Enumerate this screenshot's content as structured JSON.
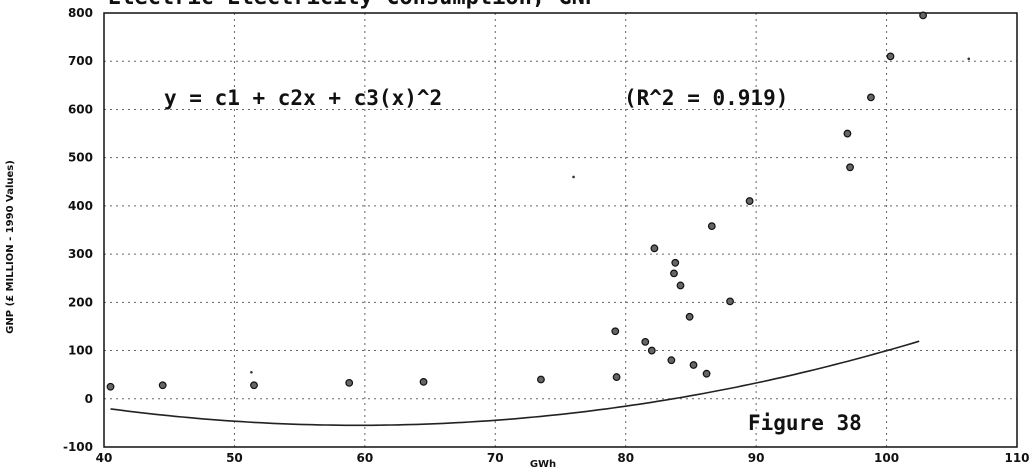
{
  "page_title": "Electric Electricity Consumption, GNP",
  "chart_data": {
    "type": "scatter",
    "title": "",
    "xlabel": "GWh",
    "ylabel": "GNP (£ MILLION - 1990 Values)",
    "xlim": [
      40,
      110
    ],
    "ylim": [
      -100,
      800
    ],
    "xticks": [
      40,
      50,
      60,
      70,
      80,
      90,
      100,
      110
    ],
    "yticks": [
      -100,
      0,
      100,
      200,
      300,
      400,
      500,
      600,
      700,
      800
    ],
    "grid": true,
    "equation": "y = c1 + c2x + c3(x)^2",
    "r_squared": "(R^2 = 0.919)",
    "figure_label": "Figure 38",
    "series": [
      {
        "kind": "points",
        "points": [
          [
            40.5,
            25
          ],
          [
            44.5,
            28
          ],
          [
            51.5,
            28
          ],
          [
            58.8,
            33
          ],
          [
            64.5,
            35
          ],
          [
            73.5,
            40
          ],
          [
            79.2,
            140
          ],
          [
            79.3,
            45
          ],
          [
            81.5,
            118
          ],
          [
            82.0,
            100
          ],
          [
            82.2,
            312
          ],
          [
            83.5,
            80
          ],
          [
            83.7,
            260
          ],
          [
            83.8,
            282
          ],
          [
            84.2,
            235
          ],
          [
            84.9,
            170
          ],
          [
            85.2,
            70
          ],
          [
            86.2,
            52
          ],
          [
            86.6,
            358
          ],
          [
            88.0,
            202
          ],
          [
            89.5,
            410
          ],
          [
            97.0,
            550
          ],
          [
            97.2,
            480
          ],
          [
            98.8,
            625
          ],
          [
            100.3,
            710
          ],
          [
            102.8,
            795
          ]
        ]
      },
      {
        "kind": "fit-curve",
        "x_range": [
          40.5,
          102.5
        ],
        "coefficients_fitted": {
          "a": 0.0943,
          "h": 59.5,
          "k": -55
        }
      }
    ],
    "stray_marks": [
      [
        76.0,
        460
      ],
      [
        106.3,
        705
      ],
      [
        51.3,
        55
      ]
    ]
  }
}
